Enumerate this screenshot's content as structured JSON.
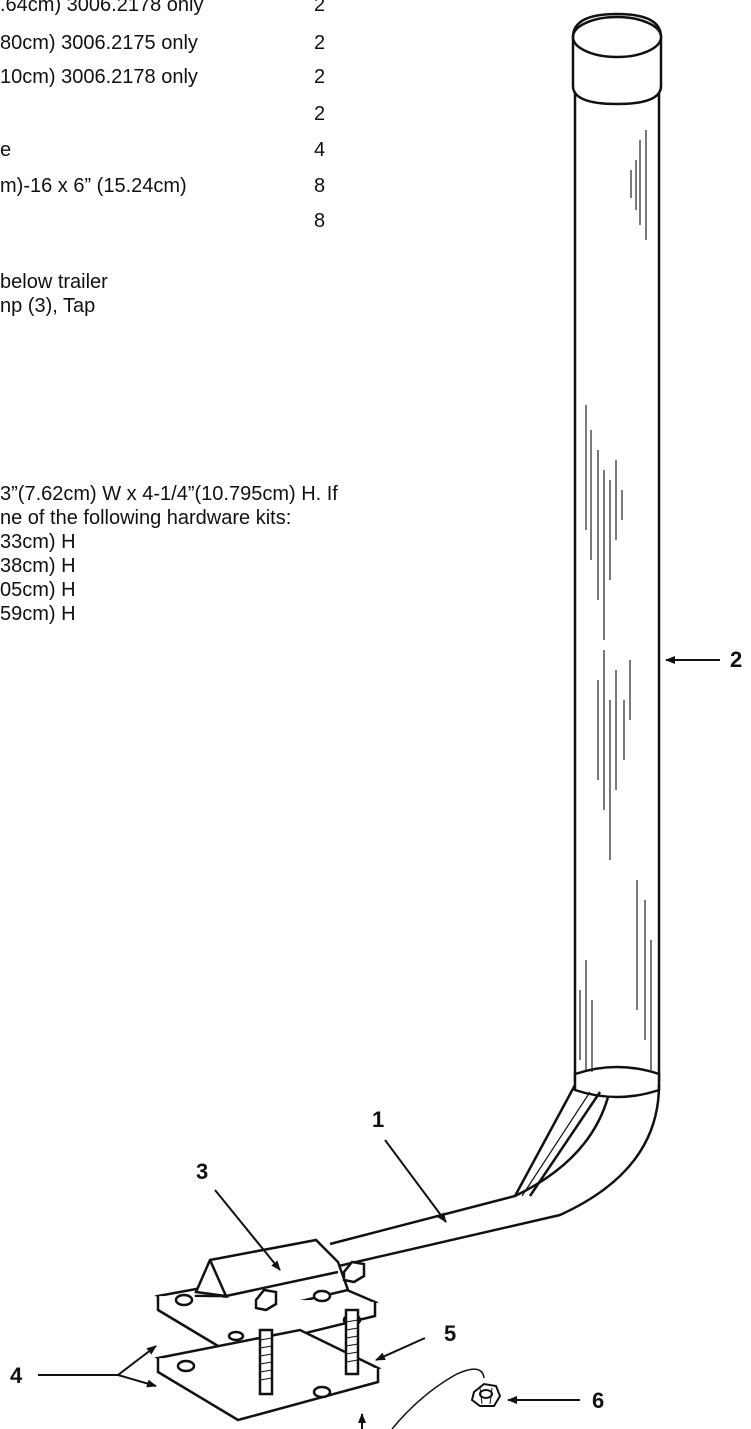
{
  "parts_list": [
    {
      "text": ".64cm) 3006.2178 only",
      "qty": "2"
    },
    {
      "text": "80cm) 3006.2175 only",
      "qty": "2"
    },
    {
      "text": "10cm) 3006.2178 only",
      "qty": "2"
    },
    {
      "text": "",
      "qty": "2"
    },
    {
      "text": "e",
      "qty": "4"
    },
    {
      "text": "m)-16 x 6” (15.24cm)",
      "qty": "8"
    },
    {
      "text": "",
      "qty": "8"
    }
  ],
  "instructions": [
    "below trailer",
    "np (3), Tap"
  ],
  "hardware_note": [
    "3”(7.62cm) W x 4-1/4”(10.795cm) H. If",
    "ne of the following hardware kits:",
    "33cm) H",
    "38cm) H",
    "05cm) H",
    "59cm) H"
  ],
  "callouts": {
    "c1": "1",
    "c2": "2",
    "c3": "3",
    "c4": "4",
    "c5": "5",
    "c6": "6"
  }
}
